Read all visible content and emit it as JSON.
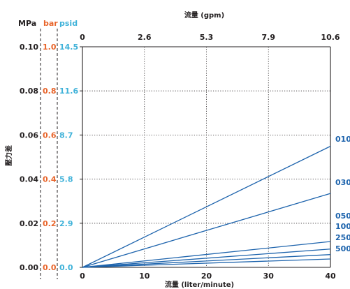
{
  "colors": {
    "text": "#231f20",
    "bar": "#e8652b",
    "psid": "#3fb2d9",
    "series": "#1e64ad",
    "grid": "#231f20"
  },
  "chart_data": {
    "type": "line",
    "title": "",
    "xlabel": "流量 (liter/minute)",
    "x2label": "流量 (gpm)",
    "ylabel": "壓力差",
    "xlim": [
      0,
      40
    ],
    "ylim": [
      0,
      0.1
    ],
    "x_ticks": [
      "0",
      "10",
      "20",
      "30",
      "40"
    ],
    "x2_ticks": [
      "0",
      "2.6",
      "5.3",
      "7.9",
      "10.6"
    ],
    "y_unit_labels": {
      "mpa": "MPa",
      "bar": "bar",
      "psid": "psid"
    },
    "y_ticks": {
      "mpa": [
        "0.00",
        "0.02",
        "0.04",
        "0.06",
        "0.08",
        "0.10"
      ],
      "bar": [
        "0.0",
        "0.2",
        "0.4",
        "0.6",
        "0.8",
        "1.0"
      ],
      "psid": [
        "0.0",
        "2.9",
        "5.8",
        "8.7",
        "11.6",
        "14.5"
      ]
    },
    "grid": true,
    "series": [
      {
        "name": "010",
        "x": [
          0,
          40
        ],
        "y": [
          0,
          0.0549
        ]
      },
      {
        "name": "030",
        "x": [
          0,
          40
        ],
        "y": [
          0,
          0.0335
        ]
      },
      {
        "name": "050",
        "x": [
          0,
          40
        ],
        "y": [
          0,
          0.0117
        ]
      },
      {
        "name": "100",
        "x": [
          0,
          40
        ],
        "y": [
          0,
          0.0083
        ]
      },
      {
        "name": "250",
        "x": [
          0,
          40
        ],
        "y": [
          0,
          0.0058
        ]
      },
      {
        "name": "500",
        "x": [
          0,
          40
        ],
        "y": [
          0,
          0.0038
        ]
      }
    ]
  }
}
